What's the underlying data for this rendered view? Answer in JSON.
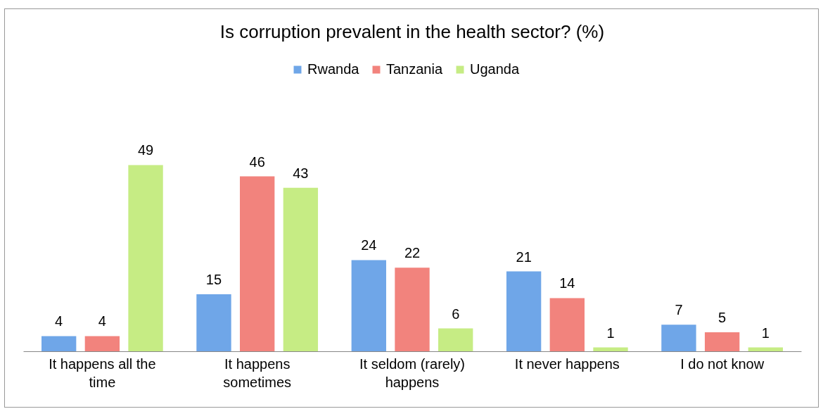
{
  "chart_data": {
    "type": "bar",
    "title": "Is corruption prevalent in the health sector? (%)",
    "categories": [
      "It happens all the time",
      "It happens sometimes",
      "It seldom (rarely) happens",
      "It never happens",
      "I do not know"
    ],
    "series": [
      {
        "name": "Rwanda",
        "color": "#6fa6e8",
        "values": [
          4,
          15,
          24,
          21,
          7
        ]
      },
      {
        "name": "Tanzania",
        "color": "#f2837d",
        "values": [
          4,
          46,
          22,
          14,
          5
        ]
      },
      {
        "name": "Uganda",
        "color": "#c6ec84",
        "values": [
          49,
          43,
          6,
          1,
          1
        ]
      }
    ],
    "data_labels": true,
    "legend": "top"
  }
}
